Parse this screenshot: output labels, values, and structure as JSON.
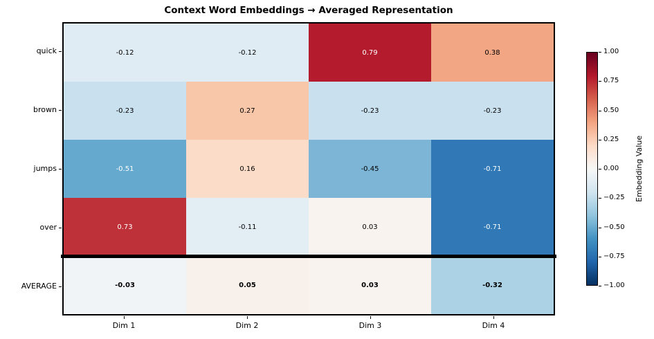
{
  "title": "Context Word Embeddings → Averaged Representation",
  "heatmap": {
    "rows": [
      "quick",
      "brown",
      "jumps",
      "over",
      "AVERAGE"
    ],
    "cols": [
      "Dim 1",
      "Dim 2",
      "Dim 3",
      "Dim 4"
    ],
    "cells": [
      [
        {
          "v": "-0.12",
          "bg": "#e0ecf3",
          "fg": "#000000",
          "b": false
        },
        {
          "v": "-0.12",
          "bg": "#e0ecf3",
          "fg": "#000000",
          "b": false
        },
        {
          "v": "0.79",
          "bg": "#b41c2d",
          "fg": "#ffffff",
          "b": false
        },
        {
          "v": "0.38",
          "bg": "#f3a683",
          "fg": "#000000",
          "b": false
        }
      ],
      [
        {
          "v": "-0.23",
          "bg": "#c9e0ee",
          "fg": "#000000",
          "b": false
        },
        {
          "v": "0.27",
          "bg": "#f8c6a9",
          "fg": "#000000",
          "b": false
        },
        {
          "v": "-0.23",
          "bg": "#c9e0ee",
          "fg": "#000000",
          "b": false
        },
        {
          "v": "-0.23",
          "bg": "#c9e0ee",
          "fg": "#000000",
          "b": false
        }
      ],
      [
        {
          "v": "-0.51",
          "bg": "#66a9cf",
          "fg": "#ffffff",
          "b": false
        },
        {
          "v": "0.16",
          "bg": "#fbdcc8",
          "fg": "#000000",
          "b": false
        },
        {
          "v": "-0.45",
          "bg": "#7cb5d6",
          "fg": "#000000",
          "b": false
        },
        {
          "v": "-0.71",
          "bg": "#3079b6",
          "fg": "#ffffff",
          "b": false
        }
      ],
      [
        {
          "v": "0.73",
          "bg": "#bf3138",
          "fg": "#ffffff",
          "b": false
        },
        {
          "v": "-0.11",
          "bg": "#e2edf4",
          "fg": "#000000",
          "b": false
        },
        {
          "v": "0.03",
          "bg": "#f8f3ef",
          "fg": "#000000",
          "b": false
        },
        {
          "v": "-0.71",
          "bg": "#3079b6",
          "fg": "#ffffff",
          "b": false
        }
      ],
      [
        {
          "v": "-0.03",
          "bg": "#f0f4f6",
          "fg": "#000000",
          "b": true
        },
        {
          "v": "0.05",
          "bg": "#f8f0ea",
          "fg": "#000000",
          "b": true
        },
        {
          "v": "0.03",
          "bg": "#f8f3ef",
          "fg": "#000000",
          "b": true
        },
        {
          "v": "-0.32",
          "bg": "#abd2e5",
          "fg": "#000000",
          "b": true
        }
      ]
    ]
  },
  "colorbar": {
    "label": "Embedding Value",
    "ticks": [
      "1.00",
      "0.75",
      "0.50",
      "0.25",
      "0.00",
      "−0.25",
      "−0.50",
      "−0.75",
      "−1.00"
    ],
    "gradient": [
      "#67001f",
      "#b2182b",
      "#d6604d",
      "#f4a582",
      "#fddbc7",
      "#f7f7f7",
      "#d1e5f0",
      "#92c5de",
      "#4393c3",
      "#2166ac",
      "#053061"
    ]
  },
  "chart_data": {
    "type": "heatmap",
    "title": "Context Word Embeddings → Averaged Representation",
    "rows": [
      "quick",
      "brown",
      "jumps",
      "over",
      "AVERAGE"
    ],
    "columns": [
      "Dim 1",
      "Dim 2",
      "Dim 3",
      "Dim 4"
    ],
    "values": [
      [
        -0.12,
        -0.12,
        0.79,
        0.38
      ],
      [
        -0.23,
        0.27,
        -0.23,
        -0.23
      ],
      [
        -0.51,
        0.16,
        -0.45,
        -0.71
      ],
      [
        0.73,
        -0.11,
        0.03,
        -0.71
      ],
      [
        -0.03,
        0.05,
        0.03,
        -0.32
      ]
    ],
    "colormap": "RdBu_r",
    "vmin": -1.0,
    "vmax": 1.0,
    "colorbar_label": "Embedding Value",
    "colorbar_tick_values": [
      1.0,
      0.75,
      0.5,
      0.25,
      0.0,
      -0.25,
      -0.5,
      -0.75,
      -1.0
    ],
    "notes": "Thick black horizontal separator line between 'over' row and 'AVERAGE' row; AVERAGE row values are bold; grid off; legend: vertical colorbar on right"
  }
}
